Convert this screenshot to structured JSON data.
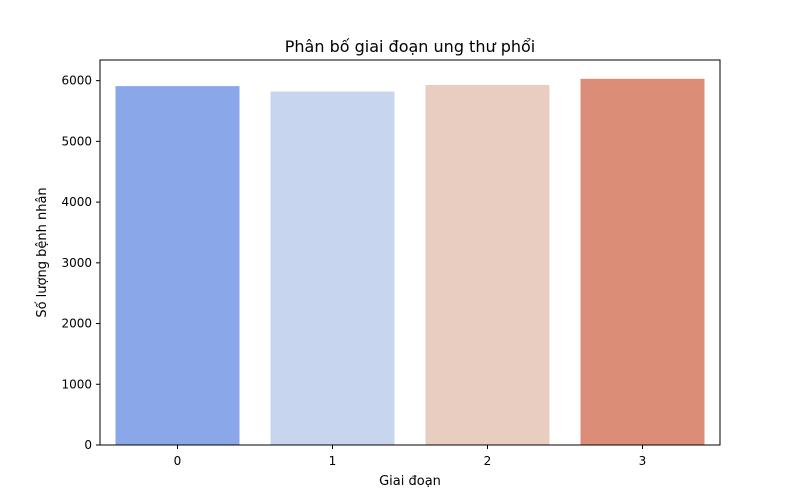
{
  "chart_data": {
    "type": "bar",
    "title": "Phân bố giai đoạn ung thư phổi",
    "xlabel": "Giai đoạn",
    "ylabel": "Số lượng bệnh nhân",
    "categories": [
      "0",
      "1",
      "2",
      "3"
    ],
    "values": [
      5910,
      5820,
      5930,
      6030
    ],
    "colors": [
      "#8aa7e9",
      "#c7d5ef",
      "#eacdc1",
      "#dc8d77"
    ],
    "ylim": [
      0,
      6340
    ],
    "yticks": [
      0,
      1000,
      2000,
      3000,
      4000,
      5000,
      6000
    ],
    "grid": false,
    "legend": "none"
  }
}
